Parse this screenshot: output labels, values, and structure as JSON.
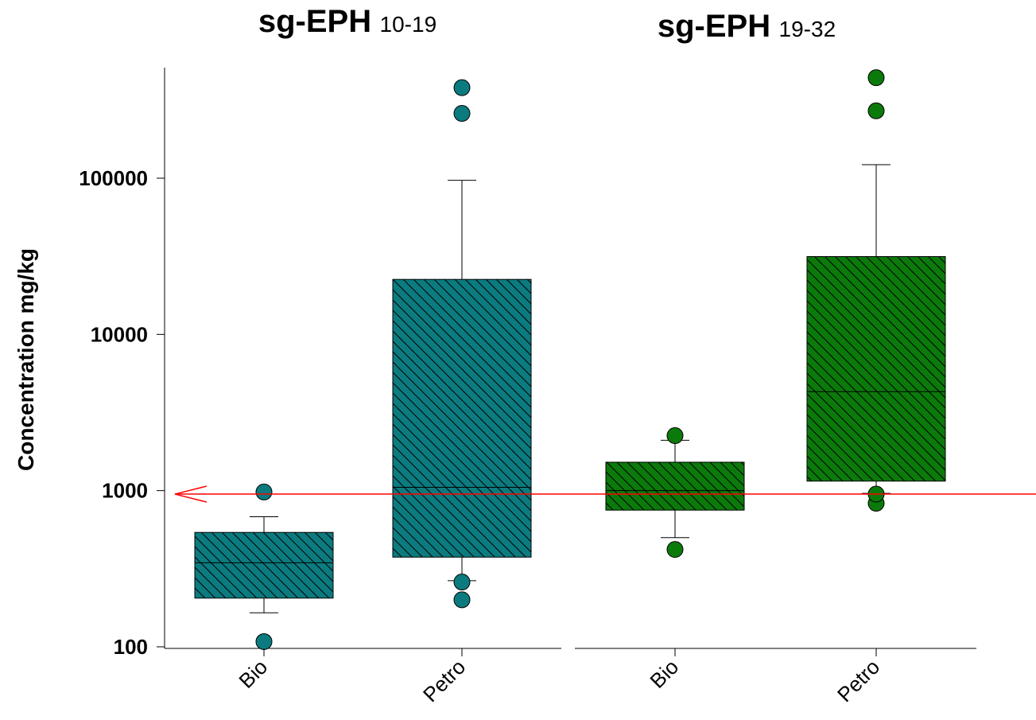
{
  "chart_data": {
    "type": "box",
    "y_scale": "log",
    "ylim": [
      100,
      500000
    ],
    "yticks": [
      100,
      1000,
      10000,
      100000
    ],
    "ytick_labels": [
      "100",
      "1000",
      "10000",
      "100000"
    ],
    "ylabel": "Concentration mg/kg",
    "reference_line": {
      "value": 950,
      "color": "#ff0000"
    },
    "panels": [
      {
        "title": "sg-EPH",
        "subtitle": "10-19",
        "color": "#0b7b7f",
        "categories": [
          "Bio",
          "Petro"
        ],
        "boxes": [
          {
            "category": "Bio",
            "whisker_low": 165,
            "q1": 205,
            "median": 345,
            "q3": 540,
            "whisker_high": 680,
            "outliers": [
              108,
              980
            ]
          },
          {
            "category": "Petro",
            "whisker_low": 265,
            "q1": 375,
            "median": 1050,
            "q3": 22500,
            "whisker_high": 97000,
            "outliers": [
              200,
              260,
              260000,
              380000
            ]
          }
        ]
      },
      {
        "title": "sg-EPH",
        "subtitle": "19-32",
        "color": "#0b7a0b",
        "categories": [
          "Bio",
          "Petro"
        ],
        "boxes": [
          {
            "category": "Bio",
            "whisker_low": 500,
            "q1": 750,
            "median": 1000,
            "q3": 1520,
            "whisker_high": 2100,
            "outliers": [
              420,
              2250
            ]
          },
          {
            "category": "Petro",
            "whisker_low": 960,
            "q1": 1150,
            "median": 4300,
            "q3": 31500,
            "whisker_high": 122000,
            "outliers": [
              830,
              950,
              270000,
              440000
            ]
          }
        ]
      }
    ]
  }
}
